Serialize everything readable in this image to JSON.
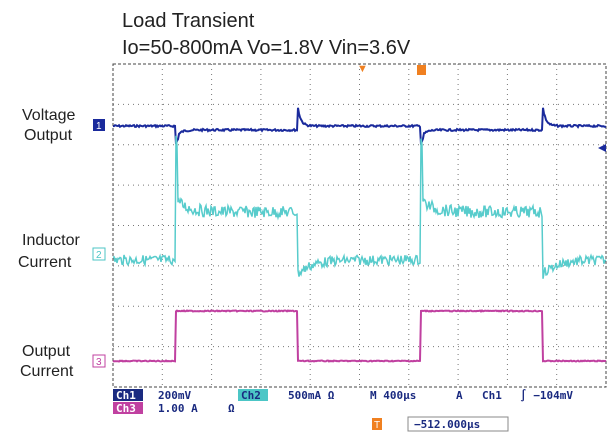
{
  "header": {
    "title": "Load Transient",
    "subtitle": "Io=50-800mA Vo=1.8V Vin=3.6V"
  },
  "traces": [
    {
      "label_lines": [
        "Voltage",
        "Output"
      ],
      "marker": "1"
    },
    {
      "label_lines": [
        "Inductor",
        "Current"
      ],
      "marker": "2"
    },
    {
      "label_lines": [
        "Output",
        "Current"
      ],
      "marker": "3"
    }
  ],
  "status": {
    "row1": {
      "ch1": "Ch1",
      "ch1_scale": "200mV",
      "ch2": "Ch2",
      "ch2_scale": "500mA Ω",
      "timebase": "M 400µs",
      "trigger_mode": "A",
      "trigger_source": "Ch1",
      "trigger_level": "∫ −104mV"
    },
    "row2": {
      "ch3": "Ch3",
      "ch3_scale": "1.00 A",
      "ch3_unit": "Ω"
    },
    "trigger_marker": "T",
    "position": "−512.000µs"
  }
}
